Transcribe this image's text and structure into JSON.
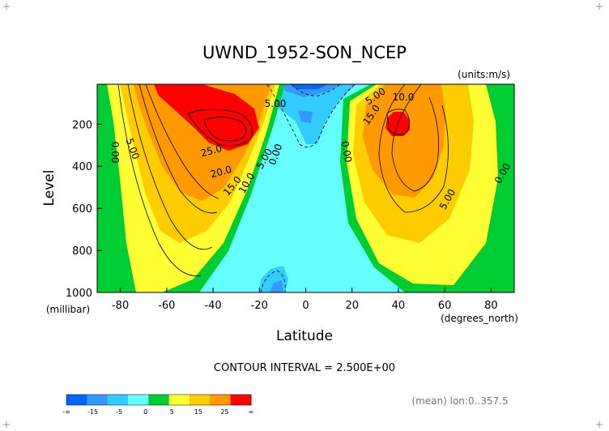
{
  "chart_data": {
    "type": "heatmap",
    "title": "UWND_1952-SON_NCEP",
    "units_label": "(units:m/s)",
    "xlabel": "Latitude",
    "xunits": "(degrees_north)",
    "ylabel": "Level",
    "yunits": "(millibar)",
    "xlim": [
      -90,
      90
    ],
    "ylim": [
      1000,
      10
    ],
    "x_ticks": [
      -80,
      -60,
      -40,
      -20,
      0,
      20,
      40,
      60,
      80
    ],
    "y_ticks": [
      200,
      400,
      600,
      800,
      1000
    ],
    "contour_interval": "CONTOUR INTERVAL = 2.500E+00",
    "averaging_note": "(mean) lon:0..357.5",
    "annotations": [
      "5.00",
      "10.0",
      "5.00",
      "15.0",
      "0.00",
      "5.00",
      "25.0",
      "20.0",
      "15.0",
      "10.0",
      "5.00",
      "0.00",
      "0.00",
      "5.00",
      "0.00"
    ],
    "colorbar": {
      "tick_labels": [
        "-∞",
        "-15",
        "-5",
        "0",
        "5",
        "15",
        "25",
        "∞"
      ],
      "colors": [
        "#0066ff",
        "#3399ff",
        "#33ccff",
        "#66ffff",
        "#00cc33",
        "#ffff33",
        "#ffcc00",
        "#ff9900",
        "#ff0000"
      ]
    }
  }
}
